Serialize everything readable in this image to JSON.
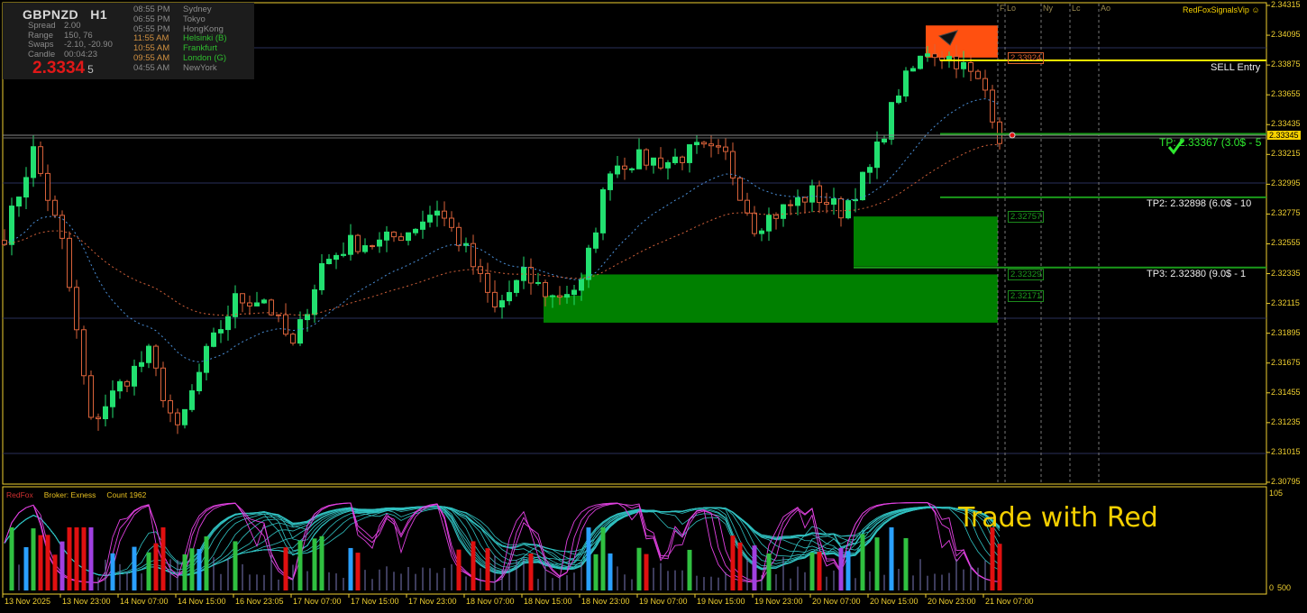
{
  "info_panel": {
    "symbol": "GBPNZD",
    "timeframe": "H1",
    "stats": [
      {
        "label": "Spread",
        "value": "2.00"
      },
      {
        "label": "Range",
        "value": "150, 76"
      },
      {
        "label": "Swaps",
        "value": "-2.10, -20.90"
      },
      {
        "label": "Candle",
        "value": "00:04:23"
      }
    ],
    "bid_main": "2.3334",
    "bid_last": "5",
    "sessions": [
      {
        "time": "08:55 PM",
        "city": "Sydney",
        "time_color": "#8a8a8a",
        "city_color": "#8a8a8a"
      },
      {
        "time": "06:55 PM",
        "city": "Tokyo",
        "time_color": "#8a8a8a",
        "city_color": "#8a8a8a"
      },
      {
        "time": "05:55 PM",
        "city": "HongKong",
        "time_color": "#8a8a8a",
        "city_color": "#8a8a8a"
      },
      {
        "time": "11:55 AM",
        "city": "Helsinki  (B)",
        "time_color": "#d09040",
        "city_color": "#2ebd2e"
      },
      {
        "time": "10:55 AM",
        "city": "Frankfurt",
        "time_color": "#d09040",
        "city_color": "#2ebd2e"
      },
      {
        "time": "09:55 AM",
        "city": "London  (G)",
        "time_color": "#d09040",
        "city_color": "#2ebd2e"
      },
      {
        "time": "04:55 AM",
        "city": "NewYork",
        "time_color": "#8a8a8a",
        "city_color": "#8a8a8a"
      }
    ]
  },
  "brand": "RedFoxSignalsVip ☺",
  "session_markers": [
    "F",
    "Lo",
    "Ny",
    "Lc",
    "Ao"
  ],
  "signals": {
    "sell_entry_label": "SELL Entry",
    "sell_entry_price": 2.33909,
    "sell_price_box": "2.33924",
    "tp1_label": "TP: 2.33367 (3.0$ - 5",
    "tp1_price": 2.33367,
    "tp2_label": "TP2: 2.32898 (6.0$ - 10",
    "tp2_price": 2.32898,
    "tp3_label": "TP3: 2.32380 (9.0$ - 1",
    "tp3_price": 2.3238,
    "zone_labels": [
      "2.32757",
      "2.32329",
      "2.32171"
    ],
    "sell_zone": [
      2.3393,
      2.34167
    ],
    "demand_zone_1": [
      2.32389,
      2.32757
    ],
    "demand_zone_2": [
      2.31973,
      2.32329
    ]
  },
  "current_price": "2.33345",
  "indicator": {
    "labels": [
      "RedFox",
      "Broker: Exness",
      "Count  1962"
    ],
    "scale_top": "105",
    "scale_bottom": "0",
    "scale_bottom_overlap": "500",
    "watermark": "Trade with Red"
  },
  "chart_data": {
    "type": "candlestick",
    "price_axis_ticks": [
      "2.34315",
      "2.34095",
      "2.33875",
      "2.33655",
      "2.33435",
      "2.33215",
      "2.32995",
      "2.32775",
      "2.32555",
      "2.32335",
      "2.32115",
      "2.31895",
      "2.31675",
      "2.31455",
      "2.31235",
      "2.31015",
      "2.30795"
    ],
    "ylim": [
      2.30795,
      2.34315
    ],
    "time_axis_ticks": [
      "13 Nov 2025",
      "13 Nov 23:00",
      "14 Nov 07:00",
      "14 Nov 15:00",
      "16 Nov 23:05",
      "17 Nov 07:00",
      "17 Nov 15:00",
      "17 Nov 23:00",
      "18 Nov 07:00",
      "18 Nov 15:00",
      "18 Nov 23:00",
      "19 Nov 07:00",
      "19 Nov 15:00",
      "19 Nov 23:00",
      "20 Nov 07:00",
      "20 Nov 15:00",
      "20 Nov 23:00",
      "21 Nov 07:00"
    ],
    "approx_closes_every_4_bars": [
      2.3262,
      2.3324,
      2.3256,
      2.3123,
      2.3151,
      2.3174,
      2.3116,
      2.3174,
      2.3214,
      2.3215,
      2.3179,
      2.324,
      2.3256,
      2.3256,
      2.3265,
      2.3282,
      2.325,
      2.3207,
      2.3232,
      2.3216,
      2.3225,
      2.3313,
      2.3318,
      2.3316,
      2.3325,
      2.332,
      2.3269,
      2.3281,
      2.3293,
      2.328,
      2.331,
      2.3369,
      2.3399,
      2.3391,
      2.3369,
      2.3335
    ],
    "colors": {
      "bull": "#22e070",
      "bear": "#d9623a",
      "ma_fast": "#4a8fd8",
      "ma_slow": "#d0603a",
      "axis": "#f0d030",
      "grid": "#2a2f5a",
      "sell_zone": "#ff5010",
      "demand_zone": "#008000"
    }
  }
}
